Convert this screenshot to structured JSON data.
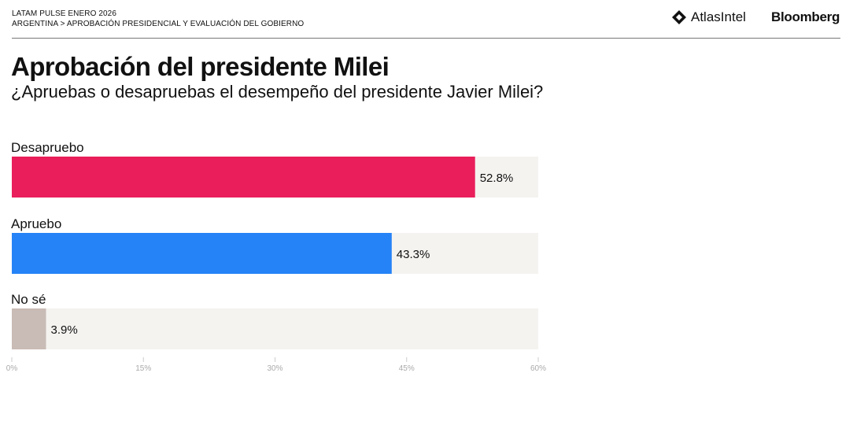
{
  "header": {
    "series": "LATAM PULSE ENERO 2026",
    "breadcrumb": "ARGENTINA > APROBACIÓN PRESIDENCIAL Y EVALUACIÓN DEL GOBIERNO",
    "logos": [
      "AtlasIntel",
      "Bloomberg"
    ]
  },
  "chart_data": {
    "type": "bar",
    "orientation": "horizontal",
    "title": "Aprobación del presidente Milei",
    "subtitle": "¿Apruebas o desapruebas el desempeño del presidente Javier Milei?",
    "categories": [
      "Desapruebo",
      "Apruebo",
      "No sé"
    ],
    "values": [
      52.8,
      43.3,
      3.9
    ],
    "data_labels": [
      "52.8%",
      "43.3%",
      "3.9%"
    ],
    "colors": [
      "#e91e5a",
      "#2583f7",
      "#c9bbb5"
    ],
    "track_color": "#f4f3f0",
    "xlim": [
      0,
      60
    ],
    "x_ticks": [
      0,
      15,
      30,
      45,
      60
    ],
    "x_tick_labels": [
      "0%",
      "15%",
      "30%",
      "45%",
      "60%"
    ],
    "grid": false,
    "legend": "none"
  }
}
